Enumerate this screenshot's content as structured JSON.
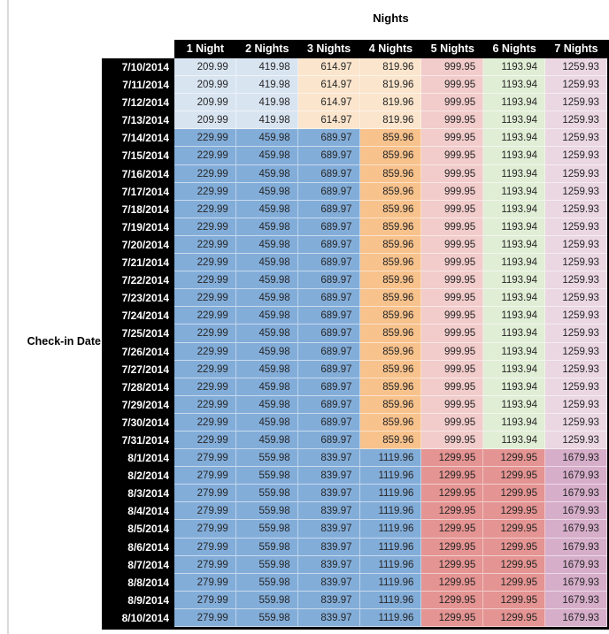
{
  "chart_data": {
    "type": "table",
    "title": "Nights",
    "row_axis_label": "Check-in Date",
    "columns": [
      "1 Night",
      "2 Nights",
      "3 Nights",
      "4 Nights",
      "5 Nights",
      "6 Nights",
      "7 Nights"
    ],
    "rows": [
      {
        "date": "7/10/2014",
        "values": [
          "209.99",
          "419.98",
          "614.97",
          "819.96",
          "999.95",
          "1193.94",
          "1259.93"
        ],
        "palette": "early_july"
      },
      {
        "date": "7/11/2014",
        "values": [
          "209.99",
          "419.98",
          "614.97",
          "819.96",
          "999.95",
          "1193.94",
          "1259.93"
        ],
        "palette": "early_july"
      },
      {
        "date": "7/12/2014",
        "values": [
          "209.99",
          "419.98",
          "614.97",
          "819.96",
          "999.95",
          "1193.94",
          "1259.93"
        ],
        "palette": "early_july"
      },
      {
        "date": "7/13/2014",
        "values": [
          "209.99",
          "419.98",
          "614.97",
          "819.96",
          "999.95",
          "1193.94",
          "1259.93"
        ],
        "palette": "early_july"
      },
      {
        "date": "7/14/2014",
        "values": [
          "229.99",
          "459.98",
          "689.97",
          "859.96",
          "999.95",
          "1193.94",
          "1259.93"
        ],
        "palette": "mid_july"
      },
      {
        "date": "7/15/2014",
        "values": [
          "229.99",
          "459.98",
          "689.97",
          "859.96",
          "999.95",
          "1193.94",
          "1259.93"
        ],
        "palette": "mid_july"
      },
      {
        "date": "7/16/2014",
        "values": [
          "229.99",
          "459.98",
          "689.97",
          "859.96",
          "999.95",
          "1193.94",
          "1259.93"
        ],
        "palette": "mid_july"
      },
      {
        "date": "7/17/2014",
        "values": [
          "229.99",
          "459.98",
          "689.97",
          "859.96",
          "999.95",
          "1193.94",
          "1259.93"
        ],
        "palette": "mid_july"
      },
      {
        "date": "7/18/2014",
        "values": [
          "229.99",
          "459.98",
          "689.97",
          "859.96",
          "999.95",
          "1193.94",
          "1259.93"
        ],
        "palette": "mid_july"
      },
      {
        "date": "7/19/2014",
        "values": [
          "229.99",
          "459.98",
          "689.97",
          "859.96",
          "999.95",
          "1193.94",
          "1259.93"
        ],
        "palette": "mid_july"
      },
      {
        "date": "7/20/2014",
        "values": [
          "229.99",
          "459.98",
          "689.97",
          "859.96",
          "999.95",
          "1193.94",
          "1259.93"
        ],
        "palette": "mid_july"
      },
      {
        "date": "7/21/2014",
        "values": [
          "229.99",
          "459.98",
          "689.97",
          "859.96",
          "999.95",
          "1193.94",
          "1259.93"
        ],
        "palette": "mid_july"
      },
      {
        "date": "7/22/2014",
        "values": [
          "229.99",
          "459.98",
          "689.97",
          "859.96",
          "999.95",
          "1193.94",
          "1259.93"
        ],
        "palette": "mid_july"
      },
      {
        "date": "7/23/2014",
        "values": [
          "229.99",
          "459.98",
          "689.97",
          "859.96",
          "999.95",
          "1193.94",
          "1259.93"
        ],
        "palette": "mid_july"
      },
      {
        "date": "7/24/2014",
        "values": [
          "229.99",
          "459.98",
          "689.97",
          "859.96",
          "999.95",
          "1193.94",
          "1259.93"
        ],
        "palette": "mid_july"
      },
      {
        "date": "7/25/2014",
        "values": [
          "229.99",
          "459.98",
          "689.97",
          "859.96",
          "999.95",
          "1193.94",
          "1259.93"
        ],
        "palette": "mid_july"
      },
      {
        "date": "7/26/2014",
        "values": [
          "229.99",
          "459.98",
          "689.97",
          "859.96",
          "999.95",
          "1193.94",
          "1259.93"
        ],
        "palette": "mid_july"
      },
      {
        "date": "7/27/2014",
        "values": [
          "229.99",
          "459.98",
          "689.97",
          "859.96",
          "999.95",
          "1193.94",
          "1259.93"
        ],
        "palette": "mid_july"
      },
      {
        "date": "7/28/2014",
        "values": [
          "229.99",
          "459.98",
          "689.97",
          "859.96",
          "999.95",
          "1193.94",
          "1259.93"
        ],
        "palette": "mid_july"
      },
      {
        "date": "7/29/2014",
        "values": [
          "229.99",
          "459.98",
          "689.97",
          "859.96",
          "999.95",
          "1193.94",
          "1259.93"
        ],
        "palette": "mid_july"
      },
      {
        "date": "7/30/2014",
        "values": [
          "229.99",
          "459.98",
          "689.97",
          "859.96",
          "999.95",
          "1193.94",
          "1259.93"
        ],
        "palette": "mid_july"
      },
      {
        "date": "7/31/2014",
        "values": [
          "229.99",
          "459.98",
          "689.97",
          "859.96",
          "999.95",
          "1193.94",
          "1259.93"
        ],
        "palette": "mid_july"
      },
      {
        "date": "8/1/2014",
        "values": [
          "279.99",
          "559.98",
          "839.97",
          "1119.96",
          "1299.95",
          "1299.95",
          "1679.93"
        ],
        "palette": "august"
      },
      {
        "date": "8/2/2014",
        "values": [
          "279.99",
          "559.98",
          "839.97",
          "1119.96",
          "1299.95",
          "1299.95",
          "1679.93"
        ],
        "palette": "august"
      },
      {
        "date": "8/3/2014",
        "values": [
          "279.99",
          "559.98",
          "839.97",
          "1119.96",
          "1299.95",
          "1299.95",
          "1679.93"
        ],
        "palette": "august"
      },
      {
        "date": "8/4/2014",
        "values": [
          "279.99",
          "559.98",
          "839.97",
          "1119.96",
          "1299.95",
          "1299.95",
          "1679.93"
        ],
        "palette": "august"
      },
      {
        "date": "8/5/2014",
        "values": [
          "279.99",
          "559.98",
          "839.97",
          "1119.96",
          "1299.95",
          "1299.95",
          "1679.93"
        ],
        "palette": "august"
      },
      {
        "date": "8/6/2014",
        "values": [
          "279.99",
          "559.98",
          "839.97",
          "1119.96",
          "1299.95",
          "1299.95",
          "1679.93"
        ],
        "palette": "august"
      },
      {
        "date": "8/7/2014",
        "values": [
          "279.99",
          "559.98",
          "839.97",
          "1119.96",
          "1299.95",
          "1299.95",
          "1679.93"
        ],
        "palette": "august"
      },
      {
        "date": "8/8/2014",
        "values": [
          "279.99",
          "559.98",
          "839.97",
          "1119.96",
          "1299.95",
          "1299.95",
          "1679.93"
        ],
        "palette": "august"
      },
      {
        "date": "8/9/2014",
        "values": [
          "279.99",
          "559.98",
          "839.97",
          "1119.96",
          "1299.95",
          "1299.95",
          "1679.93"
        ],
        "palette": "august"
      },
      {
        "date": "8/10/2014",
        "values": [
          "279.99",
          "559.98",
          "839.97",
          "1119.96",
          "1299.95",
          "1299.95",
          "1679.93"
        ],
        "palette": "august"
      }
    ]
  },
  "style": {
    "header_bg": "#000000",
    "header_text": "#ffffff",
    "date_col_bg": "#000000",
    "date_col_text": "#ffffff",
    "value_text": "#262626",
    "page_bg": "#ffffff",
    "edge_line": "#d9d9d9",
    "colors": {
      "light_blue": "#d9e4f1",
      "medium_blue": "#83add9",
      "light_orange": "#fbe5cc",
      "medium_orange": "#f8c28c",
      "light_red": "#f1cccb",
      "medium_red": "#e49492",
      "light_green": "#e1eed6",
      "light_purple": "#ead7e2",
      "medium_purple": "#d6aeca"
    },
    "palettes": {
      "early_july": [
        "light_blue",
        "light_blue",
        "light_orange",
        "light_orange",
        "light_red",
        "light_green",
        "light_purple"
      ],
      "mid_july": [
        "medium_blue",
        "medium_blue",
        "medium_blue",
        "medium_orange",
        "light_red",
        "light_green",
        "light_purple"
      ],
      "august": [
        "medium_blue",
        "medium_blue",
        "medium_blue",
        "medium_blue",
        "medium_red",
        "medium_red",
        "medium_purple"
      ]
    }
  }
}
